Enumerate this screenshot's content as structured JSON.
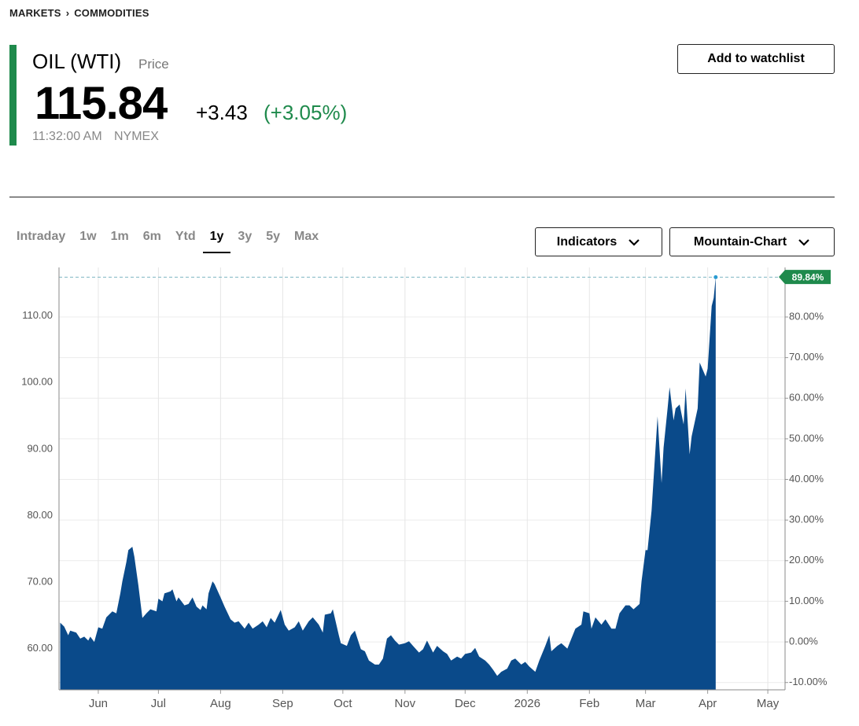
{
  "breadcrumb": [
    "MARKETS",
    "COMMODITIES"
  ],
  "quote": {
    "name": "OIL (WTI)",
    "price_label": "Price",
    "price": "115.84",
    "change": "+3.43",
    "change_percent": "(+3.05%)",
    "time": "11:32:00 AM",
    "exchange": "NYMEX"
  },
  "watchlist_button": "Add to watchlist",
  "ranges": [
    "Intraday",
    "1w",
    "1m",
    "6m",
    "Ytd",
    "1y",
    "3y",
    "5y",
    "Max"
  ],
  "active_range_index": 5,
  "dropdowns": [
    "Indicators",
    "Mountain-Chart"
  ],
  "chart_data": {
    "type": "area",
    "color": "#0a4a8a",
    "grid": true,
    "x": [
      -19,
      -17,
      -15,
      -14,
      -11,
      -9,
      -7,
      -5,
      -4,
      -2,
      0,
      2,
      4,
      7,
      9,
      11,
      12,
      14,
      15,
      17,
      18,
      20,
      22,
      24,
      26,
      29,
      30,
      32,
      33,
      36,
      37,
      39,
      40,
      43,
      45,
      47,
      49,
      51,
      52,
      54,
      55,
      57,
      58,
      61,
      63,
      66,
      68,
      70,
      73,
      75,
      77,
      80,
      82,
      84,
      86,
      88,
      91,
      93,
      95,
      98,
      100,
      102,
      105,
      107,
      110,
      112,
      113,
      116,
      117,
      120,
      121,
      124,
      126,
      128,
      131,
      133,
      135,
      138,
      140,
      142,
      144,
      146,
      148,
      150,
      153,
      155,
      157,
      160,
      162,
      164,
      167,
      169,
      172,
      174,
      176,
      179,
      181,
      183,
      186,
      188,
      190,
      193,
      195,
      197,
      199,
      201,
      204,
      206,
      208,
      211,
      213,
      215,
      218,
      220,
      223,
      225,
      226,
      229,
      231,
      234,
      236,
      238,
      241,
      242,
      245,
      246,
      248,
      251,
      253,
      256,
      258,
      260,
      263,
      265,
      267,
      270,
      271,
      273,
      274,
      276,
      278,
      279,
      281,
      282,
      284,
      285,
      287,
      288,
      290,
      292,
      293,
      295,
      296,
      299,
      300,
      303,
      304,
      306,
      307,
      308
    ],
    "values": [
      63.9,
      63.3,
      62.0,
      62.7,
      62.4,
      61.5,
      61.8,
      61.2,
      61.8,
      61.0,
      63.2,
      63.0,
      64.7,
      65.6,
      65.3,
      68.3,
      70.1,
      73.0,
      74.8,
      75.3,
      73.8,
      69.5,
      64.6,
      65.3,
      65.9,
      65.6,
      67.5,
      67.1,
      68.3,
      68.6,
      68.9,
      67.1,
      67.7,
      66.5,
      66.7,
      67.7,
      66.3,
      65.8,
      66.5,
      65.9,
      68.3,
      70.1,
      69.7,
      67.7,
      66.3,
      64.4,
      63.9,
      64.1,
      63.0,
      63.9,
      63.0,
      63.6,
      64.1,
      63.2,
      64.6,
      63.9,
      65.8,
      63.6,
      62.7,
      63.2,
      64.1,
      62.7,
      64.1,
      64.7,
      63.6,
      62.4,
      65.1,
      65.3,
      65.9,
      62.0,
      60.8,
      60.4,
      62.0,
      62.7,
      59.9,
      59.6,
      58.2,
      57.6,
      57.6,
      58.5,
      61.5,
      62.0,
      61.2,
      60.6,
      60.8,
      61.1,
      60.4,
      59.4,
      59.9,
      61.2,
      59.4,
      60.4,
      59.6,
      59.2,
      58.2,
      58.8,
      58.5,
      59.2,
      59.4,
      60.1,
      58.8,
      58.2,
      57.6,
      56.8,
      55.9,
      56.5,
      57.0,
      58.2,
      58.5,
      57.6,
      58.0,
      57.3,
      56.5,
      58.2,
      60.4,
      62.0,
      59.6,
      60.4,
      60.8,
      60.0,
      61.5,
      63.0,
      63.6,
      65.6,
      65.3,
      63.0,
      64.7,
      63.6,
      64.4,
      63.0,
      63.0,
      65.3,
      66.5,
      66.5,
      65.9,
      66.7,
      70.1,
      74.8,
      74.8,
      80.7,
      90.2,
      94.9,
      84.9,
      90.2,
      96.1,
      99.3,
      94.3,
      96.1,
      96.7,
      93.7,
      99.1,
      89.2,
      91.9,
      96.1,
      103.0,
      100.9,
      102.1,
      111.5,
      112.7,
      115.84
    ],
    "xlim": [
      -19.6,
      342.6
    ],
    "xticks": [
      {
        "value": 0,
        "label": "Jun"
      },
      {
        "value": 30,
        "label": "Jul"
      },
      {
        "value": 61,
        "label": "Aug"
      },
      {
        "value": 92,
        "label": "Sep"
      },
      {
        "value": 122,
        "label": "Oct"
      },
      {
        "value": 153,
        "label": "Nov"
      },
      {
        "value": 183,
        "label": "Dec"
      },
      {
        "value": 214,
        "label": "2026"
      },
      {
        "value": 245,
        "label": "Feb"
      },
      {
        "value": 273,
        "label": "Mar"
      },
      {
        "value": 304,
        "label": "Apr"
      },
      {
        "value": 334,
        "label": "May"
      }
    ],
    "ylim": [
      53.8,
      117.3
    ],
    "yticks": [
      {
        "value": 60,
        "label": "60.00"
      },
      {
        "value": 70,
        "label": "70.00"
      },
      {
        "value": 80,
        "label": "80.00"
      },
      {
        "value": 90,
        "label": "90.00"
      },
      {
        "value": 100,
        "label": "100.00"
      },
      {
        "value": 110,
        "label": "110.00"
      }
    ],
    "y2lim": [
      -11.8,
      92.2
    ],
    "y2ticks": [
      {
        "value": -10,
        "label": "-10.00%"
      },
      {
        "value": 0,
        "label": "0.00%"
      },
      {
        "value": 10,
        "label": "10.00%"
      },
      {
        "value": 20,
        "label": "20.00%"
      },
      {
        "value": 30,
        "label": "30.00%"
      },
      {
        "value": 40,
        "label": "40.00%"
      },
      {
        "value": 50,
        "label": "50.00%"
      },
      {
        "value": 60,
        "label": "60.00%"
      },
      {
        "value": 70,
        "label": "70.00%"
      },
      {
        "value": 80,
        "label": "80.00%"
      }
    ],
    "last_change": {
      "value": 89.84,
      "label": "89.84%"
    },
    "last_change_color": "#1f8a4c"
  }
}
